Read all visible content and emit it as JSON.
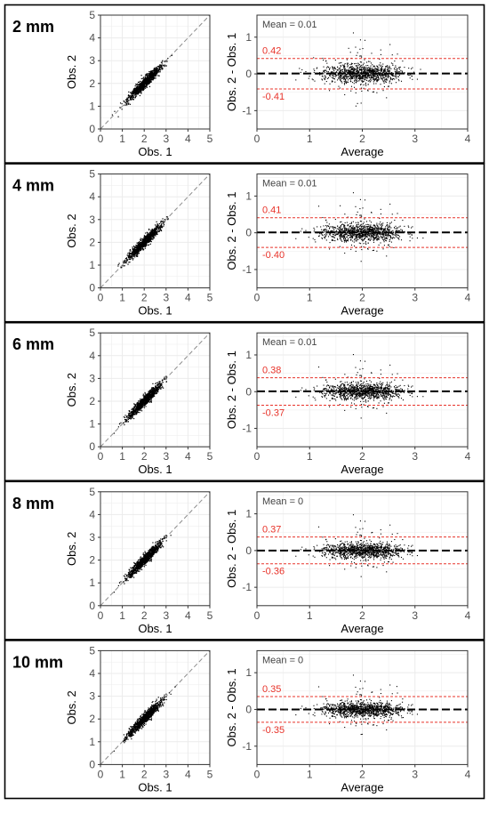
{
  "figure": {
    "panels": [
      {
        "label": "2 mm",
        "mean_label": "Mean = 0.01",
        "upper_label": "0.42",
        "lower_label": "-0.41"
      },
      {
        "label": "4 mm",
        "mean_label": "Mean = 0.01",
        "upper_label": "0.41",
        "lower_label": "-0.40"
      },
      {
        "label": "6 mm",
        "mean_label": "Mean = 0.01",
        "upper_label": "0.38",
        "lower_label": "-0.37"
      },
      {
        "label": "8 mm",
        "mean_label": "Mean = 0",
        "upper_label": "0.37",
        "lower_label": "-0.36"
      },
      {
        "label": "10 mm",
        "mean_label": "Mean = 0",
        "upper_label": "0.35",
        "lower_label": "-0.35"
      }
    ],
    "scatter_xlabel": "Obs. 1",
    "scatter_ylabel": "Obs. 2",
    "ba_xlabel": "Average",
    "ba_ylabel": "Obs. 2 - Obs. 1",
    "colors": {
      "points": "#000000",
      "limits": "#e8332a",
      "mean_line": "#000000",
      "identity_line": "#8c8c8c",
      "grid": "#ebebeb",
      "frame": "#333333",
      "ticks": "#4d4d4d"
    }
  },
  "chart_data": [
    {
      "type": "scatter",
      "panel": "2 mm",
      "title": "",
      "xlabel": "Obs. 1",
      "ylabel": "Obs. 2",
      "xlim": [
        0,
        5
      ],
      "ylim": [
        0,
        5
      ],
      "xticks": [
        0,
        1,
        2,
        3,
        4,
        5
      ],
      "yticks": [
        0,
        1,
        2,
        3,
        4,
        5
      ],
      "reference_line": "y = x (dashed)",
      "grid": true,
      "point_cloud": {
        "center": [
          2.0,
          2.0
        ],
        "x_range": [
          0.6,
          3.4
        ],
        "approx_points": 2000
      }
    },
    {
      "type": "scatter",
      "panel": "2 mm",
      "title": "",
      "xlabel": "Average",
      "ylabel": "Obs. 2 - Obs. 1",
      "xlim": [
        0,
        4
      ],
      "ylim": [
        -1.5,
        1.6
      ],
      "xticks": [
        0,
        1,
        2,
        3,
        4
      ],
      "yticks": [
        -1,
        0,
        1
      ],
      "mean": 0.01,
      "upper_loa": 0.42,
      "lower_loa": -0.41,
      "grid": true
    },
    {
      "type": "scatter",
      "panel": "4 mm",
      "title": "",
      "xlabel": "Obs. 1",
      "ylabel": "Obs. 2",
      "xlim": [
        0,
        5
      ],
      "ylim": [
        0,
        5
      ],
      "xticks": [
        0,
        1,
        2,
        3,
        4,
        5
      ],
      "yticks": [
        0,
        1,
        2,
        3,
        4,
        5
      ],
      "reference_line": "y = x (dashed)",
      "grid": true,
      "point_cloud": {
        "center": [
          2.0,
          2.0
        ],
        "x_range": [
          0.6,
          3.4
        ],
        "approx_points": 2000
      }
    },
    {
      "type": "scatter",
      "panel": "4 mm",
      "title": "",
      "xlabel": "Average",
      "ylabel": "Obs. 2 - Obs. 1",
      "xlim": [
        0,
        4
      ],
      "ylim": [
        -1.5,
        1.6
      ],
      "xticks": [
        0,
        1,
        2,
        3,
        4
      ],
      "yticks": [
        -1,
        0,
        1
      ],
      "mean": 0.01,
      "upper_loa": 0.41,
      "lower_loa": -0.4,
      "grid": true
    },
    {
      "type": "scatter",
      "panel": "6 mm",
      "title": "",
      "xlabel": "Obs. 1",
      "ylabel": "Obs. 2",
      "xlim": [
        0,
        5
      ],
      "ylim": [
        0,
        5
      ],
      "xticks": [
        0,
        1,
        2,
        3,
        4,
        5
      ],
      "yticks": [
        0,
        1,
        2,
        3,
        4,
        5
      ],
      "reference_line": "y = x (dashed)",
      "grid": true,
      "point_cloud": {
        "center": [
          2.0,
          2.0
        ],
        "x_range": [
          0.6,
          3.4
        ],
        "approx_points": 2000
      }
    },
    {
      "type": "scatter",
      "panel": "6 mm",
      "title": "",
      "xlabel": "Average",
      "ylabel": "Obs. 2 - Obs. 1",
      "xlim": [
        0,
        4
      ],
      "ylim": [
        -1.5,
        1.6
      ],
      "xticks": [
        0,
        1,
        2,
        3,
        4
      ],
      "yticks": [
        -1,
        0,
        1
      ],
      "mean": 0.01,
      "upper_loa": 0.38,
      "lower_loa": -0.37,
      "grid": true
    },
    {
      "type": "scatter",
      "panel": "8 mm",
      "title": "",
      "xlabel": "Obs. 1",
      "ylabel": "Obs. 2",
      "xlim": [
        0,
        5
      ],
      "ylim": [
        0,
        5
      ],
      "xticks": [
        0,
        1,
        2,
        3,
        4,
        5
      ],
      "yticks": [
        0,
        1,
        2,
        3,
        4,
        5
      ],
      "reference_line": "y = x (dashed)",
      "grid": true,
      "point_cloud": {
        "center": [
          2.0,
          2.0
        ],
        "x_range": [
          0.6,
          3.4
        ],
        "approx_points": 2000
      }
    },
    {
      "type": "scatter",
      "panel": "8 mm",
      "title": "",
      "xlabel": "Average",
      "ylabel": "Obs. 2 - Obs. 1",
      "xlim": [
        0,
        4
      ],
      "ylim": [
        -1.5,
        1.6
      ],
      "xticks": [
        0,
        1,
        2,
        3,
        4
      ],
      "yticks": [
        -1,
        0,
        1
      ],
      "mean": 0,
      "upper_loa": 0.37,
      "lower_loa": -0.36,
      "grid": true
    },
    {
      "type": "scatter",
      "panel": "10 mm",
      "title": "",
      "xlabel": "Obs. 1",
      "ylabel": "Obs. 2",
      "xlim": [
        0,
        5
      ],
      "ylim": [
        0,
        5
      ],
      "xticks": [
        0,
        1,
        2,
        3,
        4,
        5
      ],
      "yticks": [
        0,
        1,
        2,
        3,
        4,
        5
      ],
      "reference_line": "y = x (dashed)",
      "grid": true,
      "point_cloud": {
        "center": [
          2.0,
          2.0
        ],
        "x_range": [
          0.6,
          3.4
        ],
        "approx_points": 2000
      }
    },
    {
      "type": "scatter",
      "panel": "10 mm",
      "title": "",
      "xlabel": "Average",
      "ylabel": "Obs. 2 - Obs. 1",
      "xlim": [
        0,
        4
      ],
      "ylim": [
        -1.5,
        1.6
      ],
      "xticks": [
        0,
        1,
        2,
        3,
        4
      ],
      "yticks": [
        -1,
        0,
        1
      ],
      "mean": 0,
      "upper_loa": 0.35,
      "lower_loa": -0.35,
      "grid": true
    }
  ]
}
